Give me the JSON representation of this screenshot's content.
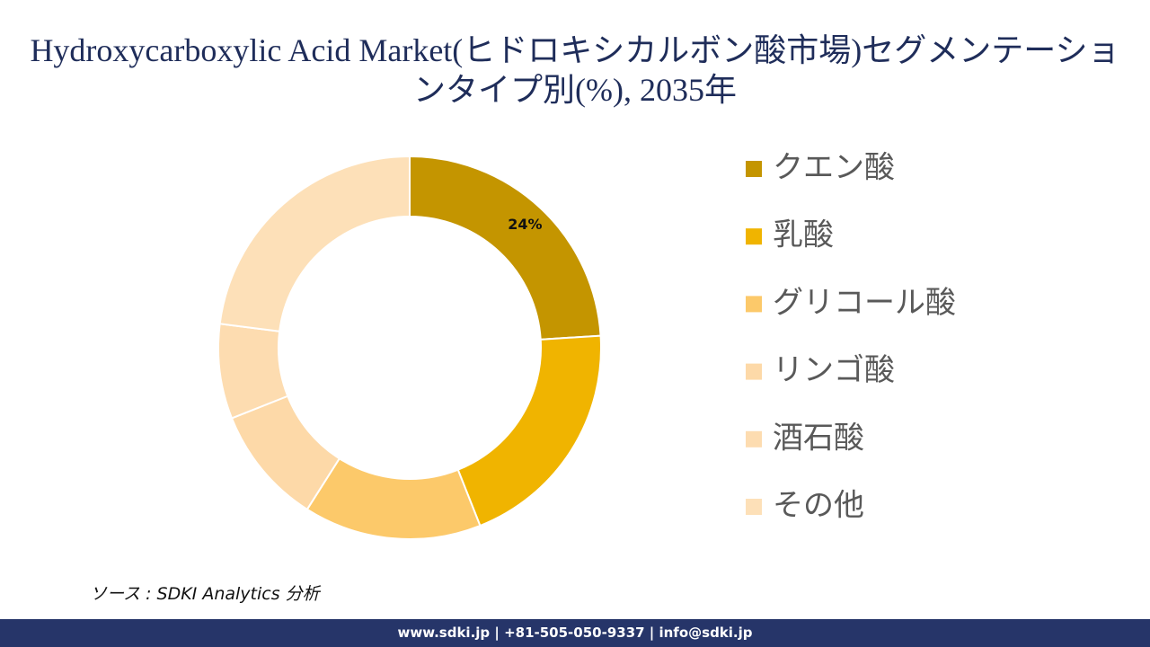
{
  "chart_data": {
    "type": "donut",
    "title": "Hydroxycarboxylic Acid Market(ヒドロキシカルボン酸市場)セグメンテーションタイプ別(%), 2035年",
    "categories": [
      "クエン酸",
      "乳酸",
      "グリコール酸",
      "リンゴ酸",
      "酒石酸",
      "その他"
    ],
    "values": [
      24,
      20,
      15,
      10,
      8,
      23
    ],
    "value_labels": [
      "24%",
      null,
      null,
      null,
      null,
      null
    ],
    "colors": [
      "#c49500",
      "#f0b400",
      "#fcc96a",
      "#fdd9a8",
      "#fddcb0",
      "#fde0b8"
    ],
    "source": "ソース : SDKI Analytics 分析",
    "footer": "www.sdki.jp | +81-505-050-9337 | info@sdki.jp"
  }
}
